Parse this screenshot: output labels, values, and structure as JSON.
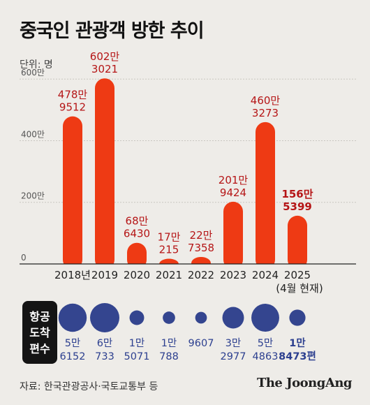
{
  "title": "중국인 관광객 방한 추이",
  "unit_label": "단위: 명",
  "flights_box": [
    "항공",
    "도착",
    "편수"
  ],
  "source": "자료: 한국관광공사·국토교통부 등",
  "logo": "The JoongAng",
  "colors": {
    "bar": "#ee3a14",
    "bar_label": "#b51516",
    "circle": "#34458f",
    "background": "#eeece8"
  },
  "chart_data": [
    {
      "type": "bar",
      "title": "중국인 관광객 방한 추이",
      "unit": "명",
      "categories": [
        "2018년",
        "2019",
        "2020",
        "2021",
        "2022",
        "2023",
        "2024",
        "2025"
      ],
      "category_notes": [
        "",
        "",
        "",
        "",
        "",
        "",
        "",
        "(4월 현재)"
      ],
      "values": [
        4789512,
        6023021,
        686430,
        170215,
        227358,
        2019424,
        4603273,
        1565399
      ],
      "value_labels": [
        [
          "478만",
          "9512"
        ],
        [
          "602만",
          "3021"
        ],
        [
          "68만",
          "6430"
        ],
        [
          "17만",
          "215"
        ],
        [
          "22만",
          "7358"
        ],
        [
          "201만",
          "9424"
        ],
        [
          "460만",
          "3273"
        ],
        [
          "156만",
          "5399"
        ]
      ],
      "y_ticks": [
        "0",
        "200만",
        "400만",
        "600만"
      ],
      "y_tick_values": [
        0,
        2000000,
        4000000,
        6000000
      ],
      "ylim": [
        0,
        6300000
      ],
      "grid": true
    },
    {
      "type": "scatter",
      "title": "항공 도착 편수",
      "categories": [
        "2018년",
        "2019",
        "2020",
        "2021",
        "2022",
        "2023",
        "2024",
        "2025"
      ],
      "values": [
        56152,
        60733,
        15071,
        10788,
        9607,
        32977,
        54863,
        18473
      ],
      "value_labels": [
        [
          "5만",
          "6152"
        ],
        [
          "6만",
          "733"
        ],
        [
          "1만",
          "5071"
        ],
        [
          "1만",
          "788"
        ],
        [
          "9607"
        ],
        [
          "3만",
          "2977"
        ],
        [
          "5만",
          "4863"
        ],
        [
          "1만",
          "8473편"
        ]
      ]
    }
  ]
}
